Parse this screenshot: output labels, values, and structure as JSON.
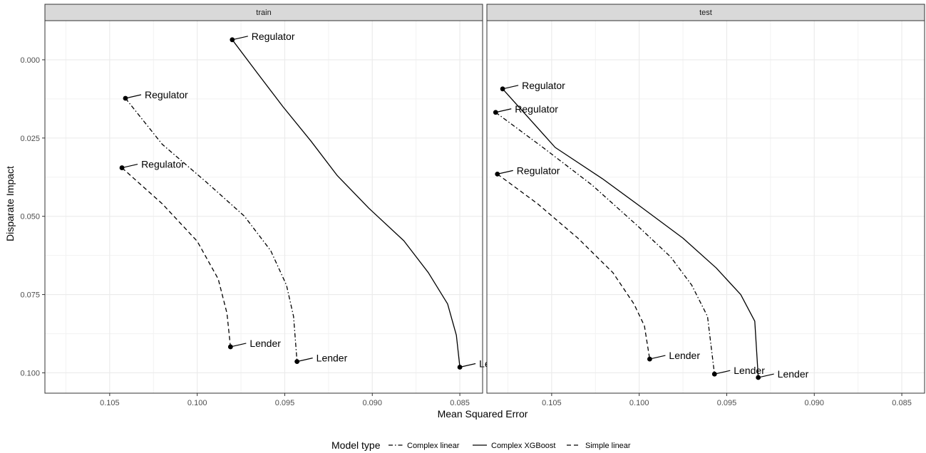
{
  "chart_data": {
    "type": "line",
    "xlabel": "Mean Squared Error",
    "ylabel": "Disparate Impact",
    "x_reversed": true,
    "y_reversed": true,
    "xlim": [
      0.1087,
      0.0837
    ],
    "ylim": [
      -0.0125,
      0.1065
    ],
    "x_ticks": [
      0.105,
      0.1,
      0.095,
      0.09,
      0.085
    ],
    "x_tick_labels": [
      "0.105",
      "0.100",
      "0.095",
      "0.090",
      "0.085"
    ],
    "y_ticks": [
      0.0,
      0.025,
      0.05,
      0.075,
      0.1
    ],
    "y_tick_labels": [
      "0.000",
      "0.025",
      "0.050",
      "0.075",
      "0.100"
    ],
    "grid": true,
    "legend": {
      "position": "bottom",
      "title": "Model type",
      "entries": [
        {
          "label": "Complex linear",
          "linetype": "dotdash"
        },
        {
          "label": "Complex XGBoost",
          "linetype": "solid"
        },
        {
          "label": "Simple linear",
          "linetype": "dashed"
        }
      ]
    },
    "panels": [
      {
        "name": "train",
        "series": [
          {
            "name": "Complex XGBoost",
            "linetype": "solid",
            "x": [
              0.098,
              0.0966,
              0.0951,
              0.0935,
              0.092,
              0.0902,
              0.0882,
              0.0868,
              0.0857,
              0.0852,
              0.085
            ],
            "y": [
              -0.0064,
              0.004,
              0.015,
              0.026,
              0.037,
              0.0474,
              0.0578,
              0.068,
              0.078,
              0.088,
              0.0982
            ],
            "endpoints": [
              {
                "label": "Regulator",
                "x": 0.098,
                "y": -0.0064
              },
              {
                "label": "Lender",
                "x": 0.085,
                "y": 0.0982
              }
            ]
          },
          {
            "name": "Complex linear",
            "linetype": "dotdash",
            "x": [
              0.1041,
              0.102,
              0.0995,
              0.0973,
              0.0958,
              0.0949,
              0.0945,
              0.0943
            ],
            "y": [
              0.0123,
              0.027,
              0.039,
              0.05,
              0.061,
              0.072,
              0.082,
              0.0964
            ],
            "endpoints": [
              {
                "label": "Regulator",
                "x": 0.1041,
                "y": 0.0123
              },
              {
                "label": "Lender",
                "x": 0.0943,
                "y": 0.0964
              }
            ]
          },
          {
            "name": "Simple linear",
            "linetype": "dashed",
            "x": [
              0.1043,
              0.102,
              0.1,
              0.0988,
              0.0983,
              0.0981
            ],
            "y": [
              0.0345,
              0.046,
              0.058,
              0.07,
              0.081,
              0.0917
            ],
            "endpoints": [
              {
                "label": "Regulator",
                "x": 0.1043,
                "y": 0.0345
              },
              {
                "label": "Lender",
                "x": 0.0981,
                "y": 0.0917
              }
            ]
          }
        ]
      },
      {
        "name": "test",
        "series": [
          {
            "name": "Complex XGBoost",
            "linetype": "solid",
            "x": [
              0.1078,
              0.1048,
              0.1021,
              0.0999,
              0.0975,
              0.0956,
              0.0942,
              0.0934,
              0.0932
            ],
            "y": [
              0.0093,
              0.028,
              0.038,
              0.047,
              0.057,
              0.0665,
              0.075,
              0.0835,
              0.1015
            ],
            "endpoints": [
              {
                "label": "Regulator",
                "x": 0.1078,
                "y": 0.0093
              },
              {
                "label": "Lender",
                "x": 0.0932,
                "y": 0.1015
              }
            ]
          },
          {
            "name": "Complex linear",
            "linetype": "dotdash",
            "x": [
              0.1082,
              0.1055,
              0.1027,
              0.1001,
              0.0982,
              0.097,
              0.0961,
              0.0957
            ],
            "y": [
              0.0168,
              0.028,
              0.04,
              0.053,
              0.063,
              0.072,
              0.082,
              0.1004
            ],
            "endpoints": [
              {
                "label": "Regulator",
                "x": 0.1082,
                "y": 0.0168
              },
              {
                "label": "Lender",
                "x": 0.0957,
                "y": 0.1004
              }
            ]
          },
          {
            "name": "Simple linear",
            "linetype": "dashed",
            "x": [
              0.1081,
              0.1058,
              0.1035,
              0.1015,
              0.1003,
              0.0997,
              0.0994
            ],
            "y": [
              0.0365,
              0.046,
              0.057,
              0.068,
              0.078,
              0.085,
              0.0956
            ],
            "endpoints": [
              {
                "label": "Regulator",
                "x": 0.1081,
                "y": 0.0365
              },
              {
                "label": "Lender",
                "x": 0.0994,
                "y": 0.0956
              }
            ]
          }
        ]
      }
    ]
  }
}
